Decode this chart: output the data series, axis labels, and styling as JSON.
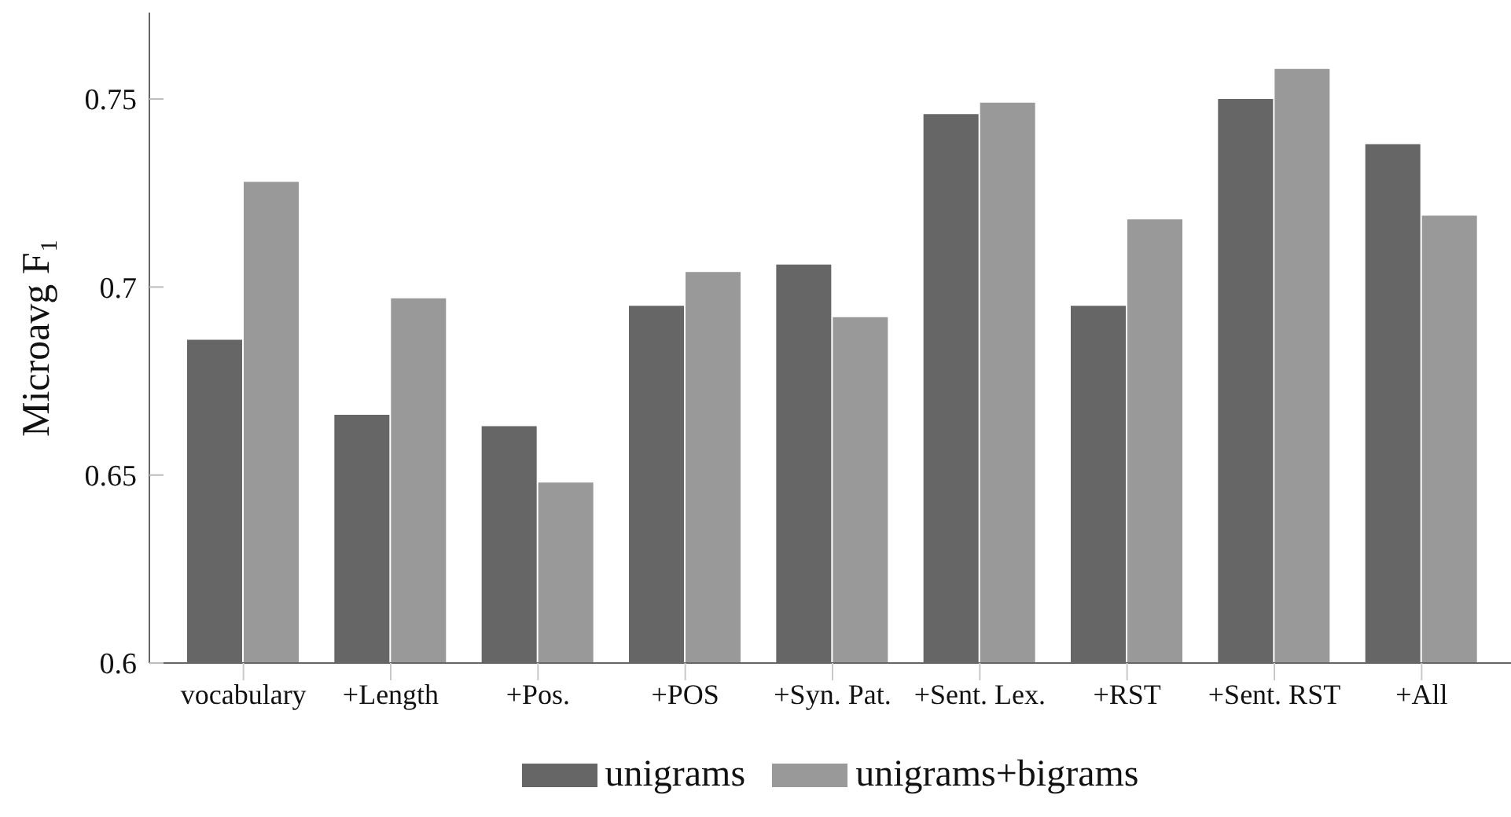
{
  "chart_data": {
    "type": "bar",
    "ylabel": "Microavg F₁",
    "categories": [
      "vocabulary",
      "+Length",
      "+Pos.",
      "+POS",
      "+Syn. Pat.",
      "+Sent. Lex.",
      "+RST",
      "+Sent. RST",
      "+All"
    ],
    "series": [
      {
        "name": "unigrams",
        "color": "#666666",
        "values": [
          0.686,
          0.666,
          0.663,
          0.695,
          0.706,
          0.746,
          0.695,
          0.75,
          0.738
        ]
      },
      {
        "name": "unigrams+bigrams",
        "color": "#999999",
        "values": [
          0.728,
          0.697,
          0.648,
          0.704,
          0.692,
          0.749,
          0.718,
          0.758,
          0.719
        ]
      }
    ],
    "ylim": [
      0.6,
      0.773
    ],
    "yticks": [
      0.6,
      0.65,
      0.7,
      0.75
    ],
    "grid": false,
    "legend": "bottom"
  }
}
